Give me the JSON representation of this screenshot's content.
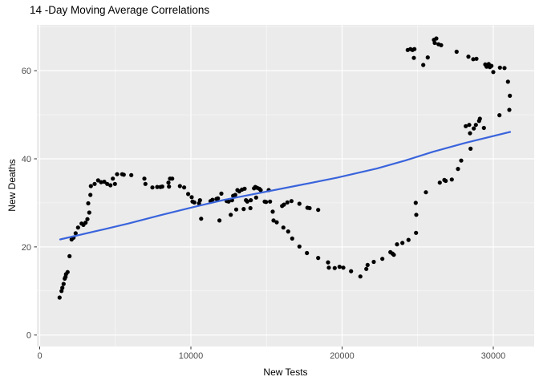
{
  "chart_data": {
    "type": "scatter",
    "title": "14 -Day Moving Average Correlations",
    "xlabel": "New Tests",
    "ylabel": "New Deaths",
    "x_ticks": [
      0,
      10000,
      20000,
      30000
    ],
    "x_minor_ticks": [
      5000,
      15000,
      25000
    ],
    "y_ticks": [
      0,
      20,
      40,
      60
    ],
    "y_minor_ticks": [
      10,
      30,
      50,
      70
    ],
    "xlim": [
      -186,
      32706
    ],
    "ylim": [
      -2.6,
      70.4
    ],
    "grid": true,
    "legend": false,
    "panel_bg": "#EBEBEB",
    "grid_major_color": "#FFFFFF",
    "grid_minor_color": "#FFFFFF",
    "tick_label_color": "#4D4D4D",
    "point_color": "#000000",
    "trend_color": "#3A64DC",
    "points": [
      [
        1316,
        8.5
      ],
      [
        1443,
        10.0
      ],
      [
        1496,
        10.7
      ],
      [
        1581,
        11.6
      ],
      [
        1655,
        12.8
      ],
      [
        1708,
        13.2
      ],
      [
        1741,
        13.8
      ],
      [
        1847,
        14.3
      ],
      [
        1974,
        17.9
      ],
      [
        2112,
        21.7
      ],
      [
        2239,
        22.1
      ],
      [
        2377,
        23.1
      ],
      [
        2536,
        24.4
      ],
      [
        2770,
        25.3
      ],
      [
        2892,
        25.0
      ],
      [
        3035,
        25.5
      ],
      [
        3157,
        26.3
      ],
      [
        3210,
        29.9
      ],
      [
        3279,
        27.8
      ],
      [
        3354,
        31.8
      ],
      [
        3385,
        33.8
      ],
      [
        3635,
        34.3
      ],
      [
        3863,
        35.1
      ],
      [
        4059,
        34.7
      ],
      [
        4271,
        34.8
      ],
      [
        4467,
        34.3
      ],
      [
        4680,
        34.0
      ],
      [
        4838,
        35.5
      ],
      [
        4976,
        34.3
      ],
      [
        5120,
        36.5
      ],
      [
        5454,
        36.5
      ],
      [
        5560,
        36.4
      ],
      [
        6059,
        36.3
      ],
      [
        6924,
        35.5
      ],
      [
        6992,
        34.3
      ],
      [
        7454,
        33.5
      ],
      [
        7772,
        33.6
      ],
      [
        7984,
        33.6
      ],
      [
        8107,
        33.7
      ],
      [
        8515,
        34.6
      ],
      [
        8553,
        33.7
      ],
      [
        8621,
        35.5
      ],
      [
        8764,
        35.5
      ],
      [
        9274,
        33.8
      ],
      [
        9555,
        33.5
      ],
      [
        9822,
        32.0
      ],
      [
        10052,
        31.3
      ],
      [
        10228,
        30.1
      ],
      [
        10106,
        30.3
      ],
      [
        10534,
        29.9
      ],
      [
        10678,
        26.4
      ],
      [
        10600,
        30.6
      ],
      [
        11299,
        30.4
      ],
      [
        11427,
        30.7
      ],
      [
        11694,
        30.9
      ],
      [
        11886,
        26.0
      ],
      [
        11788,
        31.0
      ],
      [
        12016,
        32.1
      ],
      [
        12368,
        30.4
      ],
      [
        12636,
        27.3
      ],
      [
        12493,
        30.3
      ],
      [
        12721,
        30.6
      ],
      [
        12795,
        31.6
      ],
      [
        12933,
        31.8
      ],
      [
        12998,
        28.5
      ],
      [
        13077,
        32.9
      ],
      [
        13199,
        32.6
      ],
      [
        13379,
        33.0
      ],
      [
        13491,
        28.6
      ],
      [
        13554,
        33.2
      ],
      [
        13644,
        30.6
      ],
      [
        13729,
        30.3
      ],
      [
        13936,
        28.8
      ],
      [
        13962,
        30.6
      ],
      [
        14175,
        33.3
      ],
      [
        14260,
        33.6
      ],
      [
        14387,
        33.4
      ],
      [
        14525,
        33.2
      ],
      [
        14615,
        32.9
      ],
      [
        14313,
        31.2
      ],
      [
        14881,
        30.3
      ],
      [
        15146,
        32.9
      ],
      [
        15236,
        30.3
      ],
      [
        14972,
        30.2
      ],
      [
        15412,
        28.0
      ],
      [
        15466,
        26.0
      ],
      [
        15677,
        25.6
      ],
      [
        16033,
        29.3
      ],
      [
        16155,
        29.6
      ],
      [
        16383,
        30.1
      ],
      [
        16650,
        30.4
      ],
      [
        17179,
        29.8
      ],
      [
        17710,
        28.9
      ],
      [
        17853,
        28.8
      ],
      [
        18420,
        28.4
      ],
      [
        16118,
        24.4
      ],
      [
        16436,
        23.5
      ],
      [
        16701,
        21.9
      ],
      [
        17179,
        20.1
      ],
      [
        17677,
        18.6
      ],
      [
        18420,
        17.5
      ],
      [
        19072,
        16.5
      ],
      [
        19126,
        15.3
      ],
      [
        19513,
        15.2
      ],
      [
        19831,
        15.5
      ],
      [
        20080,
        15.3
      ],
      [
        20595,
        14.5
      ],
      [
        21211,
        13.3
      ],
      [
        21603,
        15.0
      ],
      [
        21688,
        15.9
      ],
      [
        22096,
        16.6
      ],
      [
        22665,
        17.3
      ],
      [
        23195,
        18.8
      ],
      [
        23333,
        18.5
      ],
      [
        23423,
        18.2
      ],
      [
        23636,
        20.6
      ],
      [
        23990,
        20.9
      ],
      [
        24394,
        21.6
      ],
      [
        24893,
        23.2
      ],
      [
        24909,
        27.3
      ],
      [
        24871,
        30.0
      ],
      [
        25546,
        32.4
      ],
      [
        26463,
        34.6
      ],
      [
        26765,
        35.2
      ],
      [
        26855,
        35.0
      ],
      [
        27259,
        35.3
      ],
      [
        27668,
        37.7
      ],
      [
        27879,
        39.6
      ],
      [
        28500,
        42.3
      ],
      [
        28463,
        45.8
      ],
      [
        28182,
        47.4
      ],
      [
        28411,
        47.7
      ],
      [
        28713,
        46.9
      ],
      [
        28850,
        47.7
      ],
      [
        29063,
        48.6
      ],
      [
        29116,
        49.1
      ],
      [
        29381,
        47.0
      ],
      [
        30410,
        49.9
      ],
      [
        31063,
        51.1
      ],
      [
        31100,
        54.3
      ],
      [
        30973,
        57.5
      ],
      [
        30744,
        60.6
      ],
      [
        30442,
        60.7
      ],
      [
        30002,
        59.7
      ],
      [
        29880,
        61.1
      ],
      [
        29773,
        60.8
      ],
      [
        29700,
        61.5
      ],
      [
        29562,
        60.9
      ],
      [
        29471,
        61.4
      ],
      [
        28887,
        62.7
      ],
      [
        28676,
        62.6
      ],
      [
        28357,
        63.2
      ],
      [
        27577,
        64.3
      ],
      [
        26554,
        65.8
      ],
      [
        26378,
        66.0
      ],
      [
        26235,
        67.3
      ],
      [
        26128,
        66.3
      ],
      [
        26076,
        67.0
      ],
      [
        25668,
        63.0
      ],
      [
        25370,
        61.3
      ],
      [
        24787,
        64.9
      ],
      [
        24749,
        62.9
      ],
      [
        24660,
        64.7
      ],
      [
        24522,
        64.9
      ],
      [
        24341,
        64.7
      ]
    ],
    "trend": [
      [
        1353,
        21.7
      ],
      [
        3740,
        23.6
      ],
      [
        5862,
        25.3
      ],
      [
        7984,
        27.2
      ],
      [
        10106,
        29.0
      ],
      [
        12228,
        30.7
      ],
      [
        14615,
        32.3
      ],
      [
        17003,
        33.9
      ],
      [
        19655,
        35.7
      ],
      [
        22308,
        37.8
      ],
      [
        24164,
        39.6
      ],
      [
        26022,
        41.6
      ],
      [
        28143,
        43.6
      ],
      [
        31113,
        46.1
      ]
    ]
  }
}
